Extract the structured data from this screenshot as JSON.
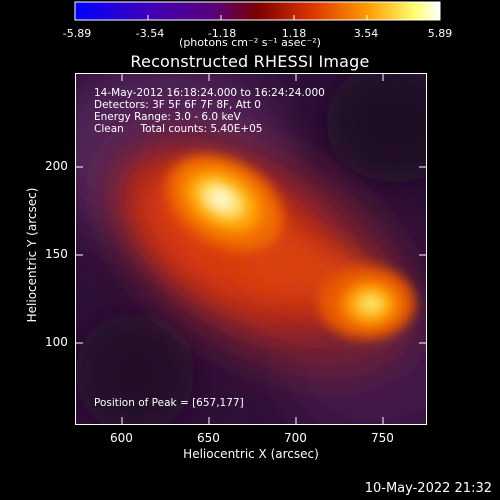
{
  "colorbar": {
    "tick_labels": [
      "-5.89",
      "-3.54",
      "-1.18",
      "1.18",
      "3.54",
      "5.89"
    ],
    "units_label": "(photons cm⁻² s⁻¹ asec⁻²)",
    "colors": [
      "#0000ff",
      "#3a00c0",
      "#5a007a",
      "#8a0000",
      "#d83000",
      "#ff9000",
      "#ffff80",
      "#ffffff"
    ]
  },
  "title": "Reconstructed RHESSI Image",
  "info": {
    "time_range": "14-May-2012 16:18:24.000 to 16:24:24.000",
    "detectors": "Detectors: 3F 5F 6F 7F 8F, Att 0",
    "energy": "Energy Range: 3.0 - 6.0 keV",
    "clean": "Clean     Total counts: 5.40E+05"
  },
  "peak_text": "Position of Peak = [657,177]",
  "axes": {
    "xlabel": "Heliocentric X (arcsec)",
    "ylabel": "Heliocentric Y (arcsec)",
    "x_ticks": [
      "600",
      "650",
      "700",
      "750"
    ],
    "y_ticks": [
      "100",
      "150",
      "200"
    ]
  },
  "footer_date": "10-May-2022 21:32"
}
